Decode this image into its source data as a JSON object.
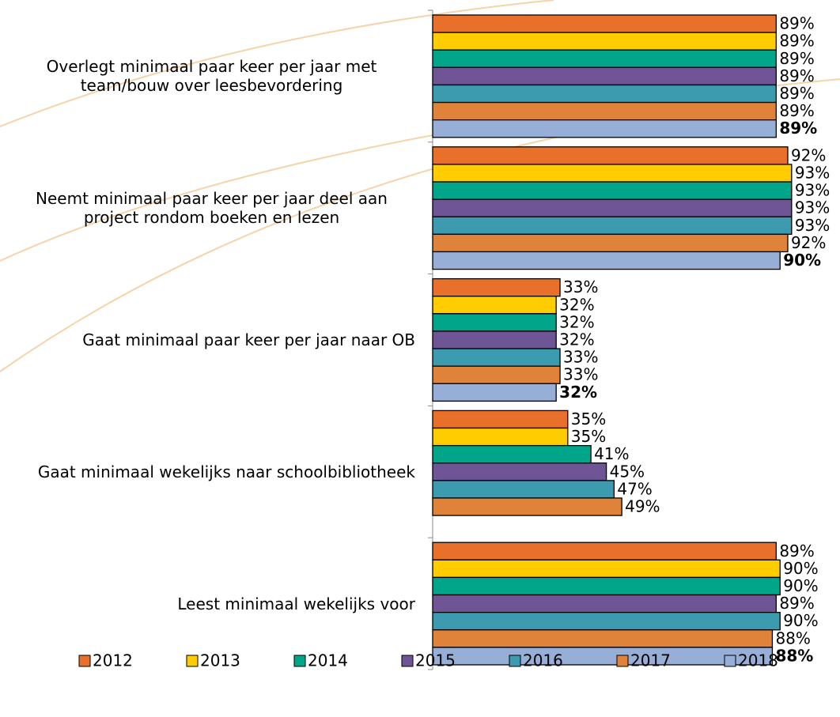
{
  "chart_data": {
    "type": "bar",
    "orientation": "horizontal",
    "categories": [
      "Overlegt minimaal paar keer per jaar met team/bouw over leesbevordering",
      "Neemt minimaal paar keer per jaar deel aan project rondom boeken en lezen",
      "Gaat minimaal paar keer per jaar naar OB",
      "Gaat minimaal wekelijks naar schoolbibliotheek",
      "Leest minimaal wekelijks voor"
    ],
    "xlim": [
      0,
      100
    ],
    "legend": "bottom",
    "series": [
      {
        "name": "2012",
        "color": "#e8702a",
        "values": [
          89,
          92,
          33,
          35,
          89
        ],
        "value_labels": [
          "89%",
          "92%",
          "33%",
          "35%",
          "89%"
        ]
      },
      {
        "name": "2013",
        "color": "#ffcc00",
        "values": [
          89,
          93,
          32,
          35,
          90
        ],
        "value_labels": [
          "89%",
          "93%",
          "32%",
          "35%",
          "90%"
        ]
      },
      {
        "name": "2014",
        "color": "#00a58a",
        "values": [
          89,
          93,
          32,
          41,
          90
        ],
        "value_labels": [
          "89%",
          "93%",
          "32%",
          "41%",
          "90%"
        ]
      },
      {
        "name": "2015",
        "color": "#6f5596",
        "values": [
          89,
          93,
          32,
          45,
          89
        ],
        "value_labels": [
          "89%",
          "93%",
          "32%",
          "45%",
          "89%"
        ]
      },
      {
        "name": "2016",
        "color": "#3d9bb0",
        "values": [
          89,
          93,
          33,
          47,
          90
        ],
        "value_labels": [
          "89%",
          "93%",
          "33%",
          "47%",
          "90%"
        ]
      },
      {
        "name": "2017",
        "color": "#e0833a",
        "values": [
          89,
          92,
          33,
          49,
          88
        ],
        "value_labels": [
          "89%",
          "92%",
          "33%",
          "49%",
          "88%"
        ]
      },
      {
        "name": "2018",
        "color": "#97aed6",
        "bold_labels": true,
        "values": [
          89,
          90,
          32,
          null,
          88
        ],
        "value_labels": [
          "89%",
          "90%",
          "32%",
          null,
          "88%"
        ]
      }
    ]
  }
}
